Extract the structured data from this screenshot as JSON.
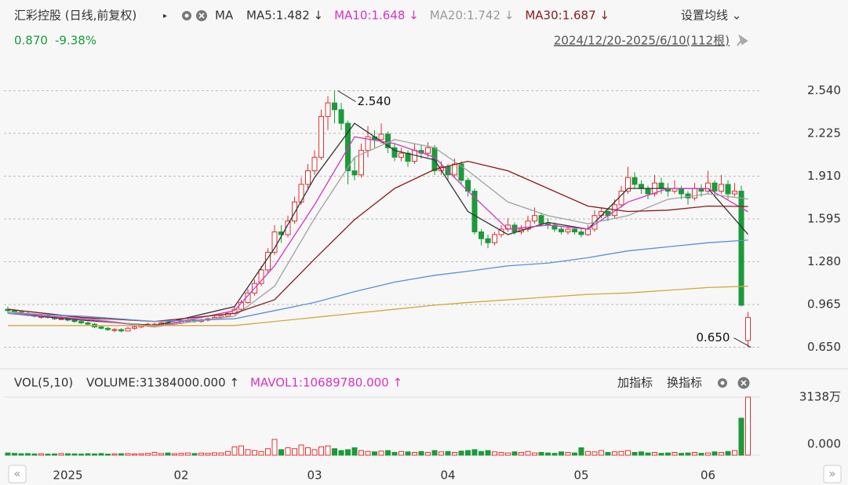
{
  "chart_data": {
    "type": "candlestick",
    "title": "汇彩控股 (日线,前复权)",
    "indicator_label": "MA",
    "ma_labels": [
      {
        "label": "MA5:1.482 ↓",
        "color": "#333333"
      },
      {
        "label": "MA10:1.648 ↓",
        "color": "#d633c4"
      },
      {
        "label": "MA20:1.742 ↓",
        "color": "#999999"
      },
      {
        "label": "MA30:1.687 ↓",
        "color": "#8b1a1a"
      }
    ],
    "settings": "设置均线 ⌄",
    "last_price": "0.870",
    "change": "-9.38%",
    "range": "2024/12/20-2025/6/10(112根)",
    "ylim": [
      0.52,
      2.63
    ],
    "yticks": [
      {
        "value": 2.54,
        "label": "2.540"
      },
      {
        "value": 2.225,
        "label": "2.225"
      },
      {
        "value": 1.91,
        "label": "1.910"
      },
      {
        "value": 1.595,
        "label": "1.595"
      },
      {
        "value": 1.28,
        "label": "1.280"
      },
      {
        "value": 0.965,
        "label": "0.965"
      },
      {
        "value": 0.65,
        "label": "0.650"
      }
    ],
    "grid": true,
    "up_color": "#e0302e",
    "down_color": "#1a9a3a",
    "xlabels": [
      {
        "index": 9,
        "label": "2025"
      },
      {
        "index": 26,
        "label": "02"
      },
      {
        "index": 46,
        "label": "03"
      },
      {
        "index": 66,
        "label": "04"
      },
      {
        "index": 86,
        "label": "05"
      },
      {
        "index": 105,
        "label": "06"
      }
    ],
    "annotations": [
      {
        "index": 49,
        "value": 2.54,
        "label": "2.540"
      },
      {
        "index": 111,
        "value": 0.65,
        "label": "0.650"
      }
    ],
    "candles": [
      [
        0.93,
        0.95,
        0.9,
        0.92
      ],
      [
        0.92,
        0.93,
        0.9,
        0.91
      ],
      [
        0.91,
        0.92,
        0.89,
        0.9
      ],
      [
        0.9,
        0.91,
        0.88,
        0.89
      ],
      [
        0.89,
        0.9,
        0.87,
        0.88
      ],
      [
        0.87,
        0.89,
        0.86,
        0.88
      ],
      [
        0.88,
        0.89,
        0.86,
        0.87
      ],
      [
        0.87,
        0.88,
        0.85,
        0.86
      ],
      [
        0.86,
        0.88,
        0.85,
        0.86
      ],
      [
        0.86,
        0.87,
        0.84,
        0.85
      ],
      [
        0.85,
        0.86,
        0.83,
        0.84
      ],
      [
        0.84,
        0.85,
        0.82,
        0.83
      ],
      [
        0.83,
        0.84,
        0.81,
        0.82
      ],
      [
        0.82,
        0.83,
        0.79,
        0.8
      ],
      [
        0.8,
        0.81,
        0.78,
        0.79
      ],
      [
        0.79,
        0.8,
        0.77,
        0.78
      ],
      [
        0.78,
        0.79,
        0.76,
        0.78
      ],
      [
        0.78,
        0.79,
        0.76,
        0.77
      ],
      [
        0.77,
        0.8,
        0.77,
        0.79
      ],
      [
        0.79,
        0.81,
        0.78,
        0.8
      ],
      [
        0.8,
        0.82,
        0.79,
        0.81
      ],
      [
        0.81,
        0.83,
        0.8,
        0.82
      ],
      [
        0.82,
        0.83,
        0.8,
        0.82
      ],
      [
        0.82,
        0.84,
        0.81,
        0.83
      ],
      [
        0.83,
        0.84,
        0.81,
        0.82
      ],
      [
        0.82,
        0.84,
        0.81,
        0.83
      ],
      [
        0.83,
        0.85,
        0.82,
        0.84
      ],
      [
        0.84,
        0.86,
        0.83,
        0.85
      ],
      [
        0.85,
        0.86,
        0.83,
        0.84
      ],
      [
        0.84,
        0.86,
        0.83,
        0.85
      ],
      [
        0.85,
        0.87,
        0.84,
        0.86
      ],
      [
        0.86,
        0.88,
        0.85,
        0.87
      ],
      [
        0.87,
        0.89,
        0.86,
        0.88
      ],
      [
        0.88,
        0.91,
        0.87,
        0.9
      ],
      [
        0.9,
        0.95,
        0.89,
        0.93
      ],
      [
        0.93,
        1.0,
        0.92,
        0.98
      ],
      [
        0.98,
        1.08,
        0.97,
        1.05
      ],
      [
        1.05,
        1.15,
        1.03,
        1.12
      ],
      [
        1.12,
        1.25,
        1.1,
        1.22
      ],
      [
        1.22,
        1.38,
        1.2,
        1.35
      ],
      [
        1.35,
        1.55,
        1.33,
        1.5
      ],
      [
        1.5,
        1.55,
        1.42,
        1.48
      ],
      [
        1.48,
        1.62,
        1.46,
        1.58
      ],
      [
        1.58,
        1.76,
        1.56,
        1.72
      ],
      [
        1.72,
        1.9,
        1.7,
        1.85
      ],
      [
        1.85,
        2.0,
        1.82,
        1.95
      ],
      [
        1.95,
        2.1,
        1.92,
        2.05
      ],
      [
        2.05,
        2.4,
        2.03,
        2.35
      ],
      [
        2.35,
        2.5,
        2.25,
        2.45
      ],
      [
        2.45,
        2.54,
        2.3,
        2.4
      ],
      [
        2.4,
        2.45,
        2.25,
        2.3
      ],
      [
        2.3,
        2.32,
        1.85,
        1.95
      ],
      [
        1.95,
        2.05,
        1.88,
        1.92
      ],
      [
        1.92,
        2.15,
        1.9,
        2.1
      ],
      [
        2.1,
        2.28,
        2.05,
        2.2
      ],
      [
        2.2,
        2.25,
        2.12,
        2.18
      ],
      [
        2.18,
        2.3,
        2.15,
        2.22
      ],
      [
        2.22,
        2.24,
        2.08,
        2.12
      ],
      [
        2.12,
        2.15,
        2.02,
        2.05
      ],
      [
        2.05,
        2.12,
        2.02,
        2.08
      ],
      [
        2.08,
        2.1,
        1.98,
        2.02
      ],
      [
        2.02,
        2.15,
        2.0,
        2.1
      ],
      [
        2.1,
        2.14,
        2.04,
        2.08
      ],
      [
        2.08,
        2.16,
        2.05,
        2.12
      ],
      [
        2.12,
        2.14,
        1.92,
        1.95
      ],
      [
        1.95,
        2.02,
        1.92,
        1.98
      ],
      [
        1.98,
        2.0,
        1.88,
        1.92
      ],
      [
        1.92,
        2.04,
        1.9,
        2.0
      ],
      [
        2.0,
        2.02,
        1.85,
        1.88
      ],
      [
        1.88,
        1.9,
        1.76,
        1.8
      ],
      [
        1.8,
        1.82,
        1.48,
        1.5
      ],
      [
        1.5,
        1.52,
        1.4,
        1.45
      ],
      [
        1.45,
        1.48,
        1.38,
        1.42
      ],
      [
        1.42,
        1.5,
        1.4,
        1.48
      ],
      [
        1.48,
        1.55,
        1.46,
        1.52
      ],
      [
        1.52,
        1.6,
        1.5,
        1.55
      ],
      [
        1.55,
        1.57,
        1.48,
        1.5
      ],
      [
        1.5,
        1.55,
        1.48,
        1.52
      ],
      [
        1.52,
        1.62,
        1.5,
        1.58
      ],
      [
        1.58,
        1.68,
        1.56,
        1.62
      ],
      [
        1.62,
        1.64,
        1.54,
        1.56
      ],
      [
        1.56,
        1.6,
        1.52,
        1.55
      ],
      [
        1.55,
        1.57,
        1.5,
        1.52
      ],
      [
        1.52,
        1.54,
        1.48,
        1.5
      ],
      [
        1.5,
        1.55,
        1.48,
        1.52
      ],
      [
        1.52,
        1.54,
        1.48,
        1.5
      ],
      [
        1.5,
        1.52,
        1.46,
        1.48
      ],
      [
        1.48,
        1.55,
        1.47,
        1.52
      ],
      [
        1.52,
        1.66,
        1.5,
        1.62
      ],
      [
        1.62,
        1.68,
        1.6,
        1.65
      ],
      [
        1.65,
        1.67,
        1.58,
        1.62
      ],
      [
        1.62,
        1.74,
        1.6,
        1.7
      ],
      [
        1.7,
        1.84,
        1.68,
        1.8
      ],
      [
        1.8,
        1.98,
        1.78,
        1.9
      ],
      [
        1.9,
        1.94,
        1.82,
        1.85
      ],
      [
        1.85,
        1.88,
        1.78,
        1.82
      ],
      [
        1.82,
        1.84,
        1.74,
        1.78
      ],
      [
        1.78,
        1.92,
        1.76,
        1.86
      ],
      [
        1.86,
        1.9,
        1.78,
        1.82
      ],
      [
        1.82,
        1.86,
        1.76,
        1.8
      ],
      [
        1.8,
        1.88,
        1.78,
        1.82
      ],
      [
        1.82,
        1.84,
        1.74,
        1.78
      ],
      [
        1.78,
        1.8,
        1.7,
        1.75
      ],
      [
        1.75,
        1.86,
        1.73,
        1.82
      ],
      [
        1.82,
        1.85,
        1.76,
        1.8
      ],
      [
        1.8,
        1.95,
        1.78,
        1.86
      ],
      [
        1.86,
        1.88,
        1.76,
        1.8
      ],
      [
        1.8,
        1.92,
        1.78,
        1.85
      ],
      [
        1.85,
        1.88,
        1.74,
        1.78
      ],
      [
        1.78,
        1.86,
        1.76,
        1.8
      ],
      [
        1.8,
        1.84,
        0.95,
        0.96
      ],
      [
        0.7,
        0.91,
        0.65,
        0.87
      ]
    ],
    "lines": {
      "x": [
        0,
        11,
        22,
        34,
        40,
        46,
        52,
        58,
        64,
        69,
        75,
        81,
        87,
        93,
        99,
        105,
        111
      ],
      "series": [
        {
          "color": "#333333",
          "values": [
            0.9,
            0.85,
            0.81,
            0.95,
            1.38,
            1.9,
            2.3,
            2.1,
            2.03,
            1.65,
            1.48,
            1.57,
            1.52,
            1.82,
            1.82,
            1.82,
            1.482
          ]
        },
        {
          "color": "#d633c4",
          "values": [
            0.9,
            0.86,
            0.8,
            0.92,
            1.25,
            1.7,
            2.2,
            2.15,
            2.05,
            1.8,
            1.52,
            1.55,
            1.52,
            1.72,
            1.82,
            1.82,
            1.648
          ]
        },
        {
          "color": "#a0a0a0",
          "values": [
            0.91,
            0.87,
            0.8,
            0.88,
            1.1,
            1.6,
            2.05,
            2.18,
            2.12,
            1.95,
            1.72,
            1.62,
            1.56,
            1.62,
            1.74,
            1.78,
            1.742
          ]
        },
        {
          "color": "#8b1a1a",
          "values": [
            0.93,
            0.87,
            0.84,
            0.9,
            1.0,
            1.3,
            1.59,
            1.82,
            1.96,
            2.02,
            1.95,
            1.82,
            1.69,
            1.65,
            1.66,
            1.69,
            1.687
          ]
        },
        {
          "color": "#5b8fd6",
          "values": [
            0.9,
            0.88,
            0.84,
            0.86,
            0.92,
            0.98,
            1.06,
            1.13,
            1.18,
            1.21,
            1.25,
            1.27,
            1.31,
            1.36,
            1.39,
            1.42,
            1.44
          ]
        },
        {
          "color": "#d4a838",
          "values": [
            0.81,
            0.81,
            0.81,
            0.81,
            0.84,
            0.87,
            0.9,
            0.93,
            0.96,
            0.98,
            1.0,
            1.02,
            1.04,
            1.05,
            1.07,
            1.09,
            1.1
          ]
        }
      ]
    },
    "volume": {
      "header": "VOL(5,10)",
      "readouts": [
        {
          "label": "VOLUME:31384000.000 ↑",
          "color": "#333333"
        },
        {
          "label": "MAVOL1:10689780.000 ↑",
          "color": "#d633c4"
        }
      ],
      "buttons": [
        "加指标",
        "换指标"
      ],
      "ylim": [
        0,
        31384000
      ],
      "yticks": [
        {
          "value": 31384000,
          "label": "3138万"
        },
        {
          "value": 0,
          "label": "0.000"
        }
      ],
      "values": [
        1200000,
        1000000,
        800000,
        900000,
        700000,
        800000,
        600000,
        700000,
        900000,
        800000,
        700000,
        600000,
        800000,
        700000,
        900000,
        600000,
        700000,
        800000,
        900000,
        700000,
        800000,
        1000000,
        1500000,
        900000,
        1200000,
        800000,
        1000000,
        1200000,
        900000,
        1100000,
        1000000,
        1300000,
        1200000,
        2000000,
        4500000,
        5000000,
        3000000,
        2500000,
        2000000,
        3500000,
        8500000,
        3000000,
        4000000,
        3500000,
        5500000,
        4000000,
        3000000,
        4500000,
        5000000,
        3500000,
        2500000,
        3000000,
        4000000,
        2500000,
        2000000,
        1800000,
        2200000,
        2500000,
        1500000,
        2000000,
        1800000,
        1500000,
        2000000,
        1500000,
        2500000,
        1800000,
        2000000,
        1500000,
        2200000,
        2500000,
        3000000,
        2000000,
        2500000,
        1800000,
        1500000,
        1200000,
        1800000,
        1500000,
        2000000,
        1200000,
        1500000,
        1200000,
        1000000,
        1800000,
        1500000,
        1200000,
        4000000,
        2000000,
        1800000,
        2500000,
        1500000,
        1800000,
        2000000,
        2500000,
        1500000,
        1800000,
        1200000,
        1500000,
        1000000,
        1200000,
        1500000,
        1000000,
        1200000,
        1500000,
        1000000,
        1200000,
        1800000,
        1500000,
        2000000,
        2500000,
        20000000,
        31384000
      ]
    }
  }
}
